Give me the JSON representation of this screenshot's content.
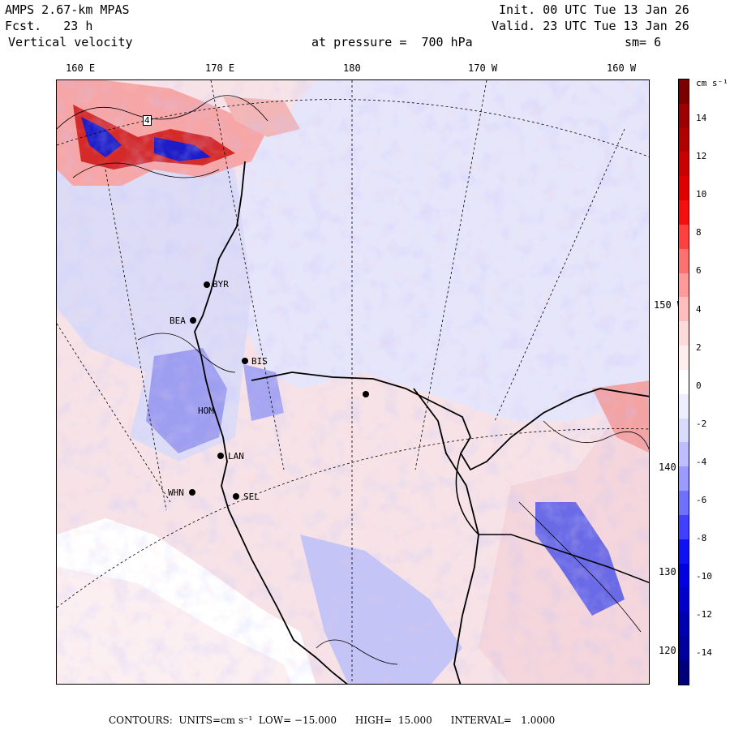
{
  "header": {
    "model": "AMPS 2.67-km MPAS",
    "forecast": "Fcst.   23 h",
    "variable": "Vertical velocity",
    "init": "Init. 00 UTC Tue 13 Jan 26",
    "valid": "Valid. 23 UTC Tue 13 Jan 26",
    "pressure": "at pressure =  700 hPa",
    "smoothing": "sm= 6"
  },
  "top_axis": [
    "160 E",
    "170 E",
    "180",
    "170 W",
    "160 W"
  ],
  "right_axis": [
    "150 W",
    "140 W",
    "130 W",
    "120 W"
  ],
  "colorbar": {
    "units": "cm s⁻¹",
    "labels": [
      "14",
      "12",
      "10",
      "8",
      "6",
      "4",
      "2",
      "0",
      "-2",
      "-4",
      "-6",
      "-8",
      "-10",
      "-12",
      "-14"
    ],
    "colors": [
      "#7a0000",
      "#9c0000",
      "#b00000",
      "#c80000",
      "#e00000",
      "#f41010",
      "#ff4040",
      "#ff7070",
      "#ff9a9a",
      "#ffbdbd",
      "#ffdada",
      "#ffeeee",
      "#ffffff",
      "#eeeeff",
      "#dadaff",
      "#bdbdff",
      "#9a9aff",
      "#7070ff",
      "#4040ff",
      "#1010f4",
      "#0000e0",
      "#0000c8",
      "#0000b0",
      "#00009c",
      "#00007a"
    ]
  },
  "stations": [
    {
      "label": "BYR"
    },
    {
      "label": "BEA"
    },
    {
      "label": "BIS"
    },
    {
      "label": "HOM"
    },
    {
      "label": "LAN"
    },
    {
      "label": "WHN"
    },
    {
      "label": "SEL"
    },
    {
      "label": "4"
    }
  ],
  "footer": {
    "contours_label": "CONTOURS:",
    "units_label": "UNITS=cm s⁻¹",
    "low": "LOW= −15.000",
    "high": "HIGH=  15.000",
    "interval": "INTERVAL=   1.0000"
  }
}
